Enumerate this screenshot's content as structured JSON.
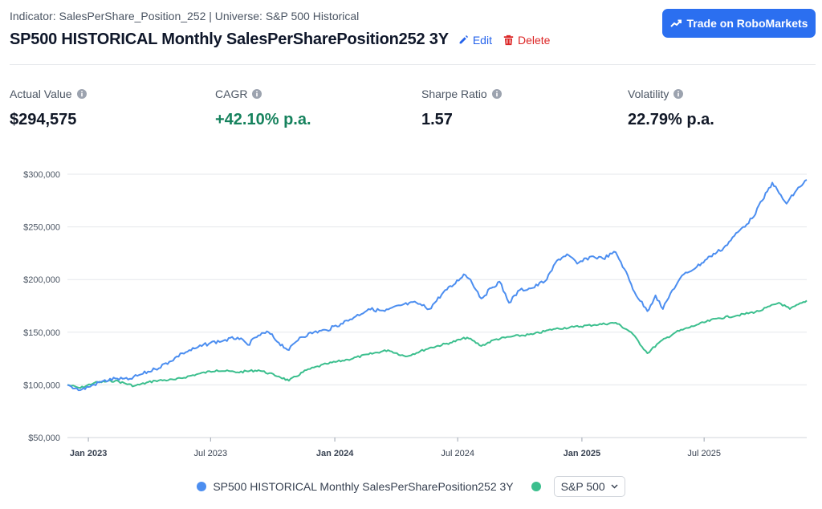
{
  "header": {
    "subtitle": "Indicator: SalesPerShare_Position_252 | Universe: S&P 500 Historical",
    "title": "SP500 HISTORICAL Monthly SalesPerSharePosition252 3Y",
    "edit_label": "Edit",
    "delete_label": "Delete",
    "trade_label": "Trade on RoboMarkets"
  },
  "stats": [
    {
      "label": "Actual Value",
      "value": "$294,575"
    },
    {
      "label": "CAGR",
      "value": "+42.10% p.a."
    },
    {
      "label": "Sharpe Ratio",
      "value": "1.57"
    },
    {
      "label": "Volatility",
      "value": "22.79% p.a."
    }
  ],
  "colors": {
    "strategy": "#4c8ef0",
    "benchmark": "#3cbf8e",
    "accent": "#2b6ff0",
    "positive": "#16825d",
    "delete": "#dc2626"
  },
  "chart_data": {
    "type": "line",
    "ylim": [
      50000,
      300000
    ],
    "y_ticks": [
      "$50,000",
      "$100,000",
      "$150,000",
      "$200,000",
      "$250,000",
      "$300,000"
    ],
    "x_ticks": [
      "Jan 2023",
      "Jul 2023",
      "Jan 2024",
      "Jul 2024",
      "Jan 2025",
      "Jul 2025"
    ],
    "x_range": [
      "2022-12-01",
      "2025-11-30"
    ],
    "series": [
      {
        "name": "SP500 HISTORICAL Monthly SalesPerSharePosition252 3Y",
        "points": [
          [
            "2022-12-01",
            100000
          ],
          [
            "2022-12-20",
            95000
          ],
          [
            "2023-01-01",
            98000
          ],
          [
            "2023-01-20",
            103000
          ],
          [
            "2023-02-10",
            106000
          ],
          [
            "2023-03-01",
            105000
          ],
          [
            "2023-03-20",
            110000
          ],
          [
            "2023-04-10",
            115000
          ],
          [
            "2023-05-01",
            122000
          ],
          [
            "2023-05-20",
            130000
          ],
          [
            "2023-06-10",
            135000
          ],
          [
            "2023-07-01",
            140000
          ],
          [
            "2023-07-20",
            142000
          ],
          [
            "2023-08-10",
            145000
          ],
          [
            "2023-08-25",
            138000
          ],
          [
            "2023-09-10",
            147000
          ],
          [
            "2023-09-25",
            150000
          ],
          [
            "2023-10-10",
            140000
          ],
          [
            "2023-10-25",
            133000
          ],
          [
            "2023-11-10",
            145000
          ],
          [
            "2023-12-01",
            150000
          ],
          [
            "2023-12-20",
            152000
          ],
          [
            "2024-01-10",
            158000
          ],
          [
            "2024-02-01",
            165000
          ],
          [
            "2024-02-20",
            172000
          ],
          [
            "2024-03-15",
            170000
          ],
          [
            "2024-04-10",
            176000
          ],
          [
            "2024-05-01",
            178000
          ],
          [
            "2024-05-20",
            172000
          ],
          [
            "2024-06-10",
            188000
          ],
          [
            "2024-06-25",
            195000
          ],
          [
            "2024-07-10",
            205000
          ],
          [
            "2024-07-20",
            200000
          ],
          [
            "2024-08-05",
            182000
          ],
          [
            "2024-08-20",
            192000
          ],
          [
            "2024-09-01",
            198000
          ],
          [
            "2024-09-15",
            178000
          ],
          [
            "2024-10-01",
            190000
          ],
          [
            "2024-10-20",
            192000
          ],
          [
            "2024-11-10",
            200000
          ],
          [
            "2024-11-25",
            218000
          ],
          [
            "2024-12-10",
            224000
          ],
          [
            "2024-12-25",
            215000
          ],
          [
            "2025-01-15",
            222000
          ],
          [
            "2025-02-01",
            220000
          ],
          [
            "2025-02-20",
            226000
          ],
          [
            "2025-03-05",
            210000
          ],
          [
            "2025-03-20",
            188000
          ],
          [
            "2025-04-08",
            170000
          ],
          [
            "2025-04-20",
            185000
          ],
          [
            "2025-05-01",
            172000
          ],
          [
            "2025-05-15",
            190000
          ],
          [
            "2025-06-01",
            205000
          ],
          [
            "2025-06-20",
            212000
          ],
          [
            "2025-07-10",
            222000
          ],
          [
            "2025-07-30",
            230000
          ],
          [
            "2025-08-20",
            245000
          ],
          [
            "2025-09-10",
            258000
          ],
          [
            "2025-09-25",
            275000
          ],
          [
            "2025-10-10",
            292000
          ],
          [
            "2025-10-20",
            282000
          ],
          [
            "2025-10-31",
            272000
          ],
          [
            "2025-11-15",
            285000
          ],
          [
            "2025-11-30",
            294575
          ]
        ]
      },
      {
        "name": "S&P 500",
        "points": [
          [
            "2022-12-01",
            100000
          ],
          [
            "2022-12-20",
            97000
          ],
          [
            "2023-01-10",
            102000
          ],
          [
            "2023-02-10",
            104000
          ],
          [
            "2023-03-10",
            99000
          ],
          [
            "2023-04-10",
            104000
          ],
          [
            "2023-05-10",
            105000
          ],
          [
            "2023-06-10",
            110000
          ],
          [
            "2023-07-10",
            114000
          ],
          [
            "2023-08-10",
            112000
          ],
          [
            "2023-09-10",
            114000
          ],
          [
            "2023-10-10",
            108000
          ],
          [
            "2023-10-25",
            104000
          ],
          [
            "2023-11-20",
            114000
          ],
          [
            "2023-12-20",
            120000
          ],
          [
            "2024-01-20",
            124000
          ],
          [
            "2024-02-20",
            129000
          ],
          [
            "2024-03-20",
            133000
          ],
          [
            "2024-04-15",
            127000
          ],
          [
            "2024-05-20",
            135000
          ],
          [
            "2024-06-20",
            140000
          ],
          [
            "2024-07-15",
            145000
          ],
          [
            "2024-08-05",
            137000
          ],
          [
            "2024-08-25",
            143000
          ],
          [
            "2024-09-20",
            146000
          ],
          [
            "2024-10-20",
            148000
          ],
          [
            "2024-11-20",
            153000
          ],
          [
            "2024-12-20",
            155000
          ],
          [
            "2025-01-20",
            157000
          ],
          [
            "2025-02-20",
            159000
          ],
          [
            "2025-03-15",
            150000
          ],
          [
            "2025-04-08",
            130000
          ],
          [
            "2025-04-25",
            140000
          ],
          [
            "2025-05-20",
            150000
          ],
          [
            "2025-06-20",
            157000
          ],
          [
            "2025-07-20",
            163000
          ],
          [
            "2025-08-20",
            166000
          ],
          [
            "2025-09-20",
            170000
          ],
          [
            "2025-10-20",
            178000
          ],
          [
            "2025-11-05",
            172000
          ],
          [
            "2025-11-30",
            180000
          ]
        ]
      }
    ],
    "legend": {
      "position": "bottom",
      "entries": [
        "SP500 HISTORICAL Monthly SalesPerSharePosition252 3Y",
        "S&P 500"
      ]
    }
  }
}
